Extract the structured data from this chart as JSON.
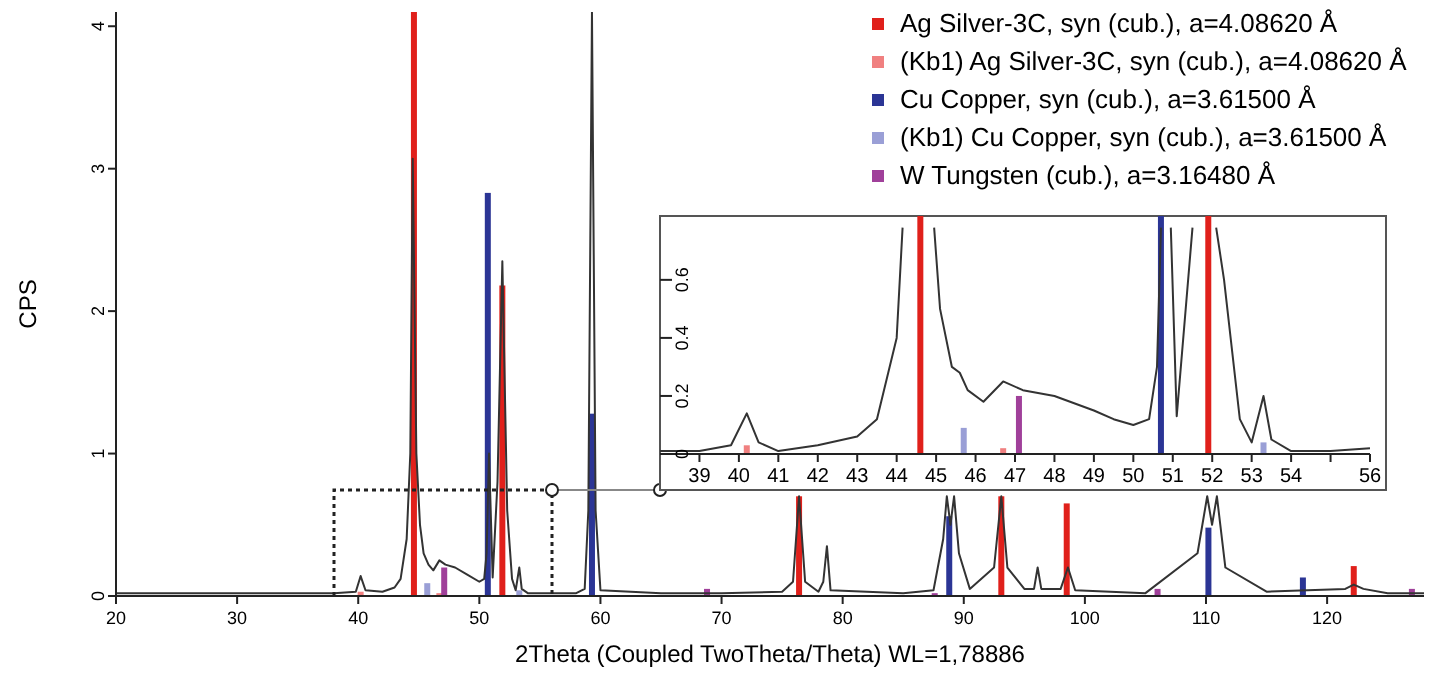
{
  "chart_data": [
    {
      "type": "line",
      "xlabel": "2Theta (Coupled TwoTheta/Theta) WL=1,78886",
      "ylabel": "CPS",
      "xlim": [
        20,
        128
      ],
      "xticks": [
        20,
        30,
        40,
        50,
        60,
        70,
        80,
        90,
        100,
        110,
        120
      ],
      "ylim": [
        0,
        4.1
      ],
      "yticks": [
        0,
        1,
        2,
        3,
        4
      ],
      "legend": "top right",
      "series": [
        {
          "color": "#333333",
          "x": [
            20,
            25,
            30,
            35,
            38,
            39.8,
            40.2,
            40.6,
            42,
            43,
            43.5,
            44,
            44.3,
            44.5,
            44.8,
            45.1,
            45.4,
            45.8,
            46.2,
            46.7,
            47.2,
            48,
            49,
            50,
            50.4,
            50.6,
            50.8,
            51.1,
            51.5,
            51.9,
            52.3,
            52.7,
            53,
            53.3,
            53.5,
            54,
            58,
            58.7,
            59,
            59.3,
            59.6,
            60,
            65,
            70,
            75,
            75.9,
            76.4,
            76.9,
            78,
            78.4,
            78.7,
            79,
            85,
            87.5,
            88.3,
            88.6,
            88.9,
            89.2,
            89.6,
            90.5,
            92.5,
            93.1,
            93.6,
            95,
            95.8,
            96.1,
            96.4,
            98,
            98.6,
            99.2,
            105,
            109.3,
            110.1,
            110.5,
            110.9,
            111.6,
            115,
            121.5,
            122.2,
            123,
            125,
            128
          ],
          "values": [
            0.02,
            0.02,
            0.02,
            0.02,
            0.02,
            0.03,
            0.14,
            0.04,
            0.03,
            0.06,
            0.12,
            0.4,
            1.0,
            3.07,
            1.0,
            0.5,
            0.3,
            0.22,
            0.18,
            0.25,
            0.22,
            0.2,
            0.15,
            0.1,
            0.12,
            0.3,
            1.0,
            0.13,
            0.8,
            2.35,
            0.6,
            0.12,
            0.04,
            0.2,
            0.05,
            0.02,
            0.02,
            0.05,
            0.6,
            4.1,
            0.6,
            0.04,
            0.02,
            0.02,
            0.03,
            0.1,
            0.7,
            0.1,
            0.03,
            0.1,
            0.35,
            0.04,
            0.02,
            0.04,
            0.4,
            0.7,
            0.5,
            0.7,
            0.3,
            0.05,
            0.2,
            0.7,
            0.2,
            0.05,
            0.05,
            0.2,
            0.05,
            0.05,
            0.2,
            0.04,
            0.02,
            0.3,
            0.7,
            0.5,
            0.7,
            0.2,
            0.03,
            0.05,
            0.08,
            0.05,
            0.02,
            0.02
          ]
        },
        {
          "type": "bar",
          "name": "Ag Silver-3C, syn (cub.), a=4.08620 Å",
          "color": "#e0201b",
          "x": [
            44.6,
            51.9,
            76.4,
            93.1,
            98.5,
            122.2
          ],
          "values": [
            4.1,
            2.18,
            0.7,
            0.7,
            0.65,
            0.21
          ]
        },
        {
          "type": "bar",
          "name": "(Kb1) Ag Silver-3C, syn (cub.), a=4.08620 Å",
          "color": "#f08080",
          "x": [
            40.2,
            46.7
          ],
          "values": [
            0.03,
            0.02
          ]
        },
        {
          "type": "bar",
          "name": "Cu Copper, syn (cub.), a=3.61500 Å",
          "color": "#2b3595",
          "x": [
            50.7,
            59.3,
            88.8,
            110.2,
            118
          ],
          "values": [
            2.83,
            1.28,
            0.56,
            0.48,
            0.13
          ]
        },
        {
          "type": "bar",
          "name": "(Kb1) Cu Copper, syn (cub.), a=3.61500 Å",
          "color": "#9a9fd6",
          "x": [
            45.7,
            53.3
          ],
          "values": [
            0.09,
            0.04
          ]
        },
        {
          "type": "bar",
          "name": "W Tungsten (cub.), a=3.16480 Å",
          "color": "#a0409a",
          "x": [
            47.1,
            68.8,
            87.6,
            106,
            127
          ],
          "values": [
            0.2,
            0.05,
            0.02,
            0.05,
            0.05
          ]
        }
      ]
    },
    {
      "type": "line",
      "xlim": [
        38,
        56
      ],
      "xticks": [
        39,
        40,
        41,
        42,
        43,
        44,
        45,
        46,
        47,
        48,
        49,
        50,
        51,
        52,
        53,
        54,
        {
          "value": 55,
          "label": null
        },
        56
      ],
      "ylim": [
        0,
        0.82
      ],
      "yticks": [
        0,
        0.2,
        0.4,
        0.6
      ],
      "series": [
        {
          "color": "#333333",
          "x": [
            38,
            39,
            39.8,
            40.2,
            40.5,
            41,
            42,
            43,
            43.5,
            44,
            44.15,
            44.3,
            44.5,
            44.8,
            44.95,
            45.1,
            45.4,
            45.6,
            45.8,
            46.2,
            46.7,
            47.2,
            48,
            49,
            49.5,
            50,
            50.4,
            50.6,
            50.7,
            50.8,
            50.95,
            51.1,
            51.5,
            51.9,
            52.1,
            52.3,
            52.7,
            53,
            53.3,
            53.5,
            54,
            55,
            56
          ],
          "values": [
            0.01,
            0.01,
            0.03,
            0.14,
            0.04,
            0.01,
            0.03,
            0.06,
            0.12,
            0.4,
            0.78,
            null,
            null,
            null,
            0.78,
            0.5,
            0.3,
            0.28,
            0.22,
            0.18,
            0.25,
            0.22,
            0.2,
            0.15,
            0.12,
            0.1,
            0.12,
            0.3,
            0.78,
            null,
            0.78,
            0.13,
            0.78,
            null,
            0.78,
            0.6,
            0.12,
            0.04,
            0.2,
            0.05,
            0.01,
            0.01,
            0.02
          ]
        },
        {
          "type": "bar",
          "color": "#f08080",
          "x": [
            40.2,
            46.7
          ],
          "values": [
            0.03,
            0.02
          ]
        },
        {
          "type": "bar",
          "color": "#9a9fd6",
          "x": [
            45.7,
            53.3
          ],
          "values": [
            0.09,
            0.04
          ]
        },
        {
          "type": "bar",
          "color": "#a0409a",
          "x": [
            47.1
          ],
          "values": [
            0.2
          ]
        }
      ],
      "ref_lines": [
        {
          "axis": "x",
          "value": 44.6,
          "color": "#e0201b"
        },
        {
          "axis": "x",
          "value": 51.9,
          "color": "#e0201b"
        },
        {
          "axis": "x",
          "value": 50.7,
          "color": "#2b3595"
        }
      ]
    }
  ]
}
